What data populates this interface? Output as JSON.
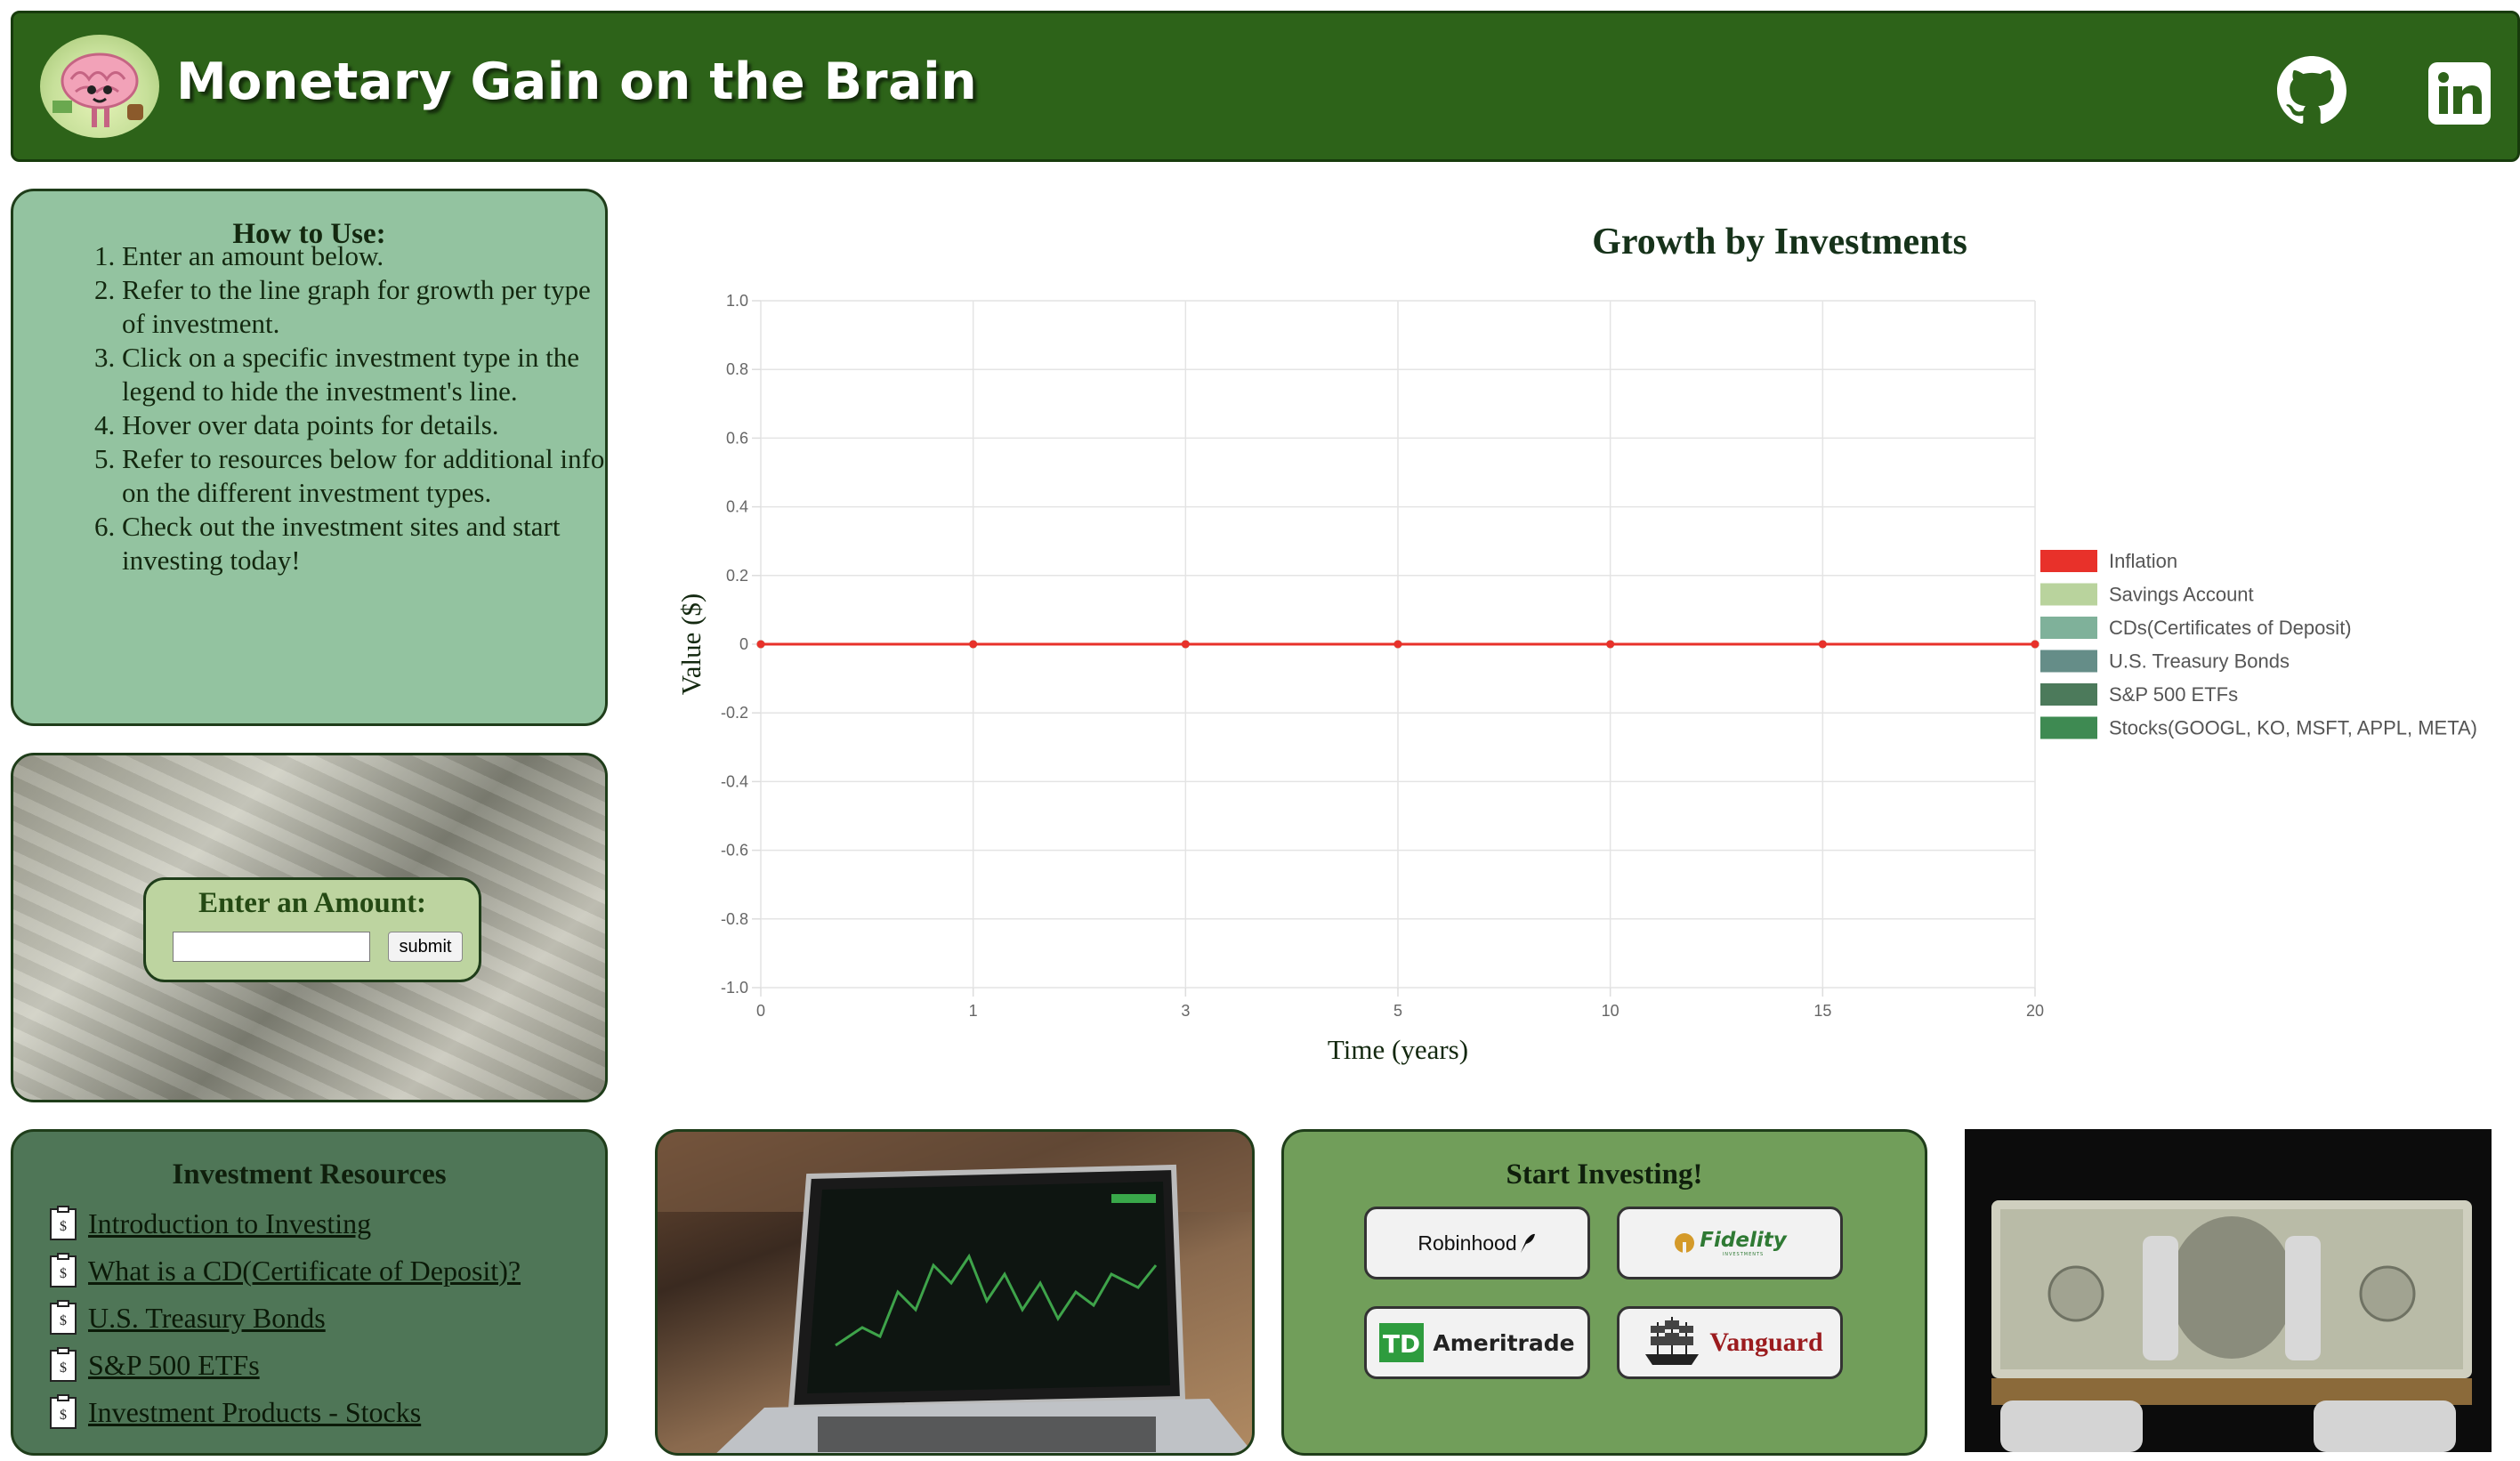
{
  "header": {
    "title": "Monetary Gain on the Brain",
    "links": [
      "github-icon",
      "linkedin-icon"
    ]
  },
  "howto": {
    "title": "How to Use:",
    "steps": [
      "Enter an amount below.",
      "Refer to the line graph for growth per type of investment.",
      "Click on a specific investment type in the legend to hide the investment's line.",
      "Hover over data points for details.",
      "Refer to resources below for additional info on the different investment types.",
      "Check out the investment sites and start investing today!"
    ]
  },
  "amount": {
    "label": "Enter an Amount:",
    "input_value": "",
    "submit_label": "submit"
  },
  "resources": {
    "title": "Investment Resources",
    "items": [
      "Introduction to Investing",
      "What is a CD(Certificate of Deposit)?",
      "U.S. Treasury Bonds",
      "S&P 500 ETFs",
      "Investment Products - Stocks"
    ]
  },
  "start_investing": {
    "title": "Start Investing!",
    "brokers": [
      "Robinhood",
      "Fidelity",
      "Ameritrade",
      "Vanguard"
    ],
    "fidelity_sub": "INVESTMENTS"
  },
  "chart_data": {
    "type": "line",
    "title": "Growth by Investments",
    "xlabel": "Time (years)",
    "ylabel": "Value ($)",
    "categories": [
      "0",
      "1",
      "3",
      "5",
      "10",
      "15",
      "20"
    ],
    "ylim": [
      -1.0,
      1.0
    ],
    "yticks": [
      "1.0",
      "0.8",
      "0.6",
      "0.4",
      "0.2",
      "0",
      "-0.2",
      "-0.4",
      "-0.6",
      "-0.8",
      "-1.0"
    ],
    "grid": true,
    "legend_position": "right",
    "series": [
      {
        "name": "Inflation",
        "color": "#e8312a",
        "values": [
          0,
          0,
          0,
          0,
          0,
          0,
          0
        ]
      },
      {
        "name": "Savings Account",
        "color": "#b9d39d",
        "values": [
          0,
          0,
          0,
          0,
          0,
          0,
          0
        ]
      },
      {
        "name": "CDs(Certificates of Deposit)",
        "color": "#7fb19a",
        "values": [
          0,
          0,
          0,
          0,
          0,
          0,
          0
        ]
      },
      {
        "name": "U.S. Treasury Bonds",
        "color": "#658d88",
        "values": [
          0,
          0,
          0,
          0,
          0,
          0,
          0
        ]
      },
      {
        "name": "S&P 500 ETFs",
        "color": "#4c7a5b",
        "values": [
          0,
          0,
          0,
          0,
          0,
          0,
          0
        ]
      },
      {
        "name": "Stocks(GOOGL, KO, MSFT, APPL, META)",
        "color": "#3e8a52",
        "values": [
          0,
          0,
          0,
          0,
          0,
          0,
          0
        ]
      }
    ]
  }
}
